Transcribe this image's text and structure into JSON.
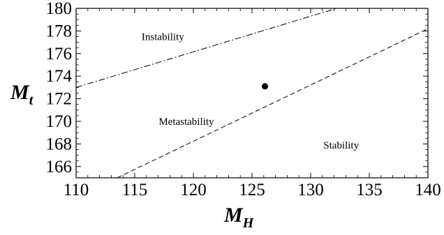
{
  "chart_data": {
    "type": "line",
    "title": "",
    "xlabel": "M",
    "xlabel_subscript": "H",
    "ylabel": "M",
    "ylabel_subscript": "t",
    "xlim": [
      110,
      140
    ],
    "ylim": [
      165,
      180
    ],
    "xticks": [
      110,
      115,
      120,
      125,
      130,
      135,
      140
    ],
    "yticks": [
      166,
      168,
      170,
      172,
      174,
      176,
      178,
      180
    ],
    "grid": false,
    "series": [
      {
        "style": "dot-dash",
        "points": [
          [
            110,
            173.0
          ],
          [
            132.2,
            180.0
          ]
        ]
      },
      {
        "style": "dashed",
        "points": [
          [
            113.5,
            165.0
          ],
          [
            140,
            178.2
          ]
        ]
      }
    ],
    "points": [
      {
        "x": 126.1,
        "y": 173.1
      }
    ],
    "annotations": [
      {
        "text": "Instability",
        "x": 117.4,
        "y": 177.5
      },
      {
        "text": "Metastability",
        "x": 119.4,
        "y": 170.0
      },
      {
        "text": "Stability",
        "x": 132.6,
        "y": 167.9
      }
    ],
    "colors": {
      "line": "#000000",
      "frame": "#000000",
      "background": "#ffffff"
    }
  }
}
